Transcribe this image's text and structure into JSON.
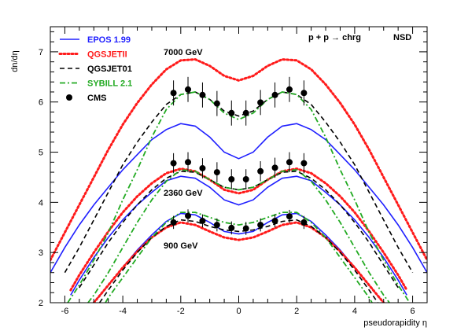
{
  "chart_data": {
    "type": "line",
    "title": "",
    "xlabel": "pseudorapidity η",
    "ylabel": "dn/dη",
    "xlim": [
      -6.5,
      6.5
    ],
    "ylim": [
      2,
      7.5
    ],
    "x_ticks": [
      -6,
      -4,
      -2,
      0,
      2,
      4,
      6
    ],
    "y_ticks": [
      2,
      3,
      4,
      5,
      6,
      7
    ],
    "grid": false,
    "legend_position": "top-left",
    "annotations": {
      "reaction": "p + p → chrg",
      "nsd": "NSD",
      "e7000": "7000 GeV",
      "e2360": "2360 GeV",
      "e900": "900 GeV"
    },
    "series": [
      {
        "name": "EPOS 1.99",
        "color": "#2020ff",
        "dash": "solid",
        "curves": [
          {
            "energy": "7000 GeV",
            "x": [
              -6.5,
              -6,
              -5.5,
              -5,
              -4.5,
              -4,
              -3.5,
              -3,
              -2.5,
              -2,
              -1.5,
              -1,
              -0.5,
              0,
              0.5,
              1,
              1.5,
              2,
              2.5,
              3,
              3.5,
              4,
              4.5,
              5,
              5.5,
              6,
              6.5
            ],
            "y": [
              2.6,
              3.1,
              3.55,
              3.95,
              4.3,
              4.65,
              4.95,
              5.25,
              5.45,
              5.57,
              5.52,
              5.3,
              5.0,
              4.87,
              5.0,
              5.3,
              5.52,
              5.57,
              5.45,
              5.25,
              4.95,
              4.65,
              4.3,
              3.95,
              3.55,
              3.1,
              2.6
            ]
          },
          {
            "energy": "2360 GeV",
            "x": [
              -5.8,
              -5.5,
              -5,
              -4.5,
              -4,
              -3.5,
              -3,
              -2.5,
              -2,
              -1.5,
              -1,
              -0.5,
              0,
              0.5,
              1,
              1.5,
              2,
              2.5,
              3,
              3.5,
              4,
              4.5,
              5,
              5.5,
              5.8
            ],
            "y": [
              2.15,
              2.45,
              2.9,
              3.3,
              3.65,
              3.95,
              4.2,
              4.43,
              4.52,
              4.48,
              4.3,
              4.05,
              3.95,
              4.05,
              4.3,
              4.48,
              4.52,
              4.43,
              4.2,
              3.95,
              3.65,
              3.3,
              2.9,
              2.45,
              2.15
            ]
          },
          {
            "energy": "900 GeV",
            "x": [
              -5,
              -4.5,
              -4,
              -3.5,
              -3,
              -2.5,
              -2,
              -1.5,
              -1,
              -0.5,
              0,
              0.5,
              1,
              1.5,
              2,
              2.5,
              3,
              3.5,
              4,
              4.5,
              5
            ],
            "y": [
              2.0,
              2.35,
              2.7,
              3.05,
              3.35,
              3.62,
              3.78,
              3.75,
              3.6,
              3.42,
              3.37,
              3.42,
              3.6,
              3.75,
              3.78,
              3.62,
              3.35,
              3.05,
              2.7,
              2.35,
              2.0
            ]
          }
        ]
      },
      {
        "name": "QGSJETII",
        "color": "#ff1a1a",
        "dash": "dotted",
        "curves": [
          {
            "energy": "7000 GeV",
            "x": [
              -6.5,
              -6,
              -5.5,
              -5,
              -4.5,
              -4,
              -3.5,
              -3,
              -2.5,
              -2,
              -1.5,
              -1,
              -0.5,
              0,
              0.5,
              1,
              1.5,
              2,
              2.5,
              3,
              3.5,
              4,
              4.5,
              5,
              5.5,
              6,
              6.5
            ],
            "y": [
              2.85,
              3.4,
              3.95,
              4.5,
              5.05,
              5.55,
              5.98,
              6.35,
              6.65,
              6.83,
              6.85,
              6.72,
              6.52,
              6.43,
              6.52,
              6.72,
              6.85,
              6.83,
              6.65,
              6.35,
              5.98,
              5.55,
              5.05,
              4.5,
              3.95,
              3.4,
              2.85
            ]
          },
          {
            "energy": "2360 GeV",
            "x": [
              -5.8,
              -5.5,
              -5,
              -4.5,
              -4,
              -3.5,
              -3,
              -2.5,
              -2,
              -1.5,
              -1,
              -0.5,
              0,
              0.5,
              1,
              1.5,
              2,
              2.5,
              3,
              3.5,
              4,
              4.5,
              5,
              5.5,
              5.8
            ],
            "y": [
              2.25,
              2.55,
              3.0,
              3.42,
              3.8,
              4.12,
              4.38,
              4.58,
              4.67,
              4.62,
              4.45,
              4.25,
              4.18,
              4.25,
              4.45,
              4.62,
              4.67,
              4.58,
              4.38,
              4.12,
              3.8,
              3.42,
              3.0,
              2.55,
              2.25
            ]
          },
          {
            "energy": "900 GeV",
            "x": [
              -5,
              -4.5,
              -4,
              -3.5,
              -3,
              -2.5,
              -2,
              -1.5,
              -1,
              -0.5,
              0,
              0.5,
              1,
              1.5,
              2,
              2.5,
              3,
              3.5,
              4,
              4.5,
              5
            ],
            "y": [
              2.0,
              2.35,
              2.7,
              3.02,
              3.3,
              3.5,
              3.6,
              3.55,
              3.42,
              3.3,
              3.25,
              3.3,
              3.42,
              3.55,
              3.6,
              3.5,
              3.3,
              3.02,
              2.7,
              2.35,
              2.0
            ]
          }
        ]
      },
      {
        "name": "QGSJET01",
        "color": "#000000",
        "dash": "dashed",
        "curves": [
          {
            "energy": "7000 GeV",
            "x": [
              -6,
              -5.5,
              -5,
              -4.5,
              -4,
              -3.5,
              -3,
              -2.5,
              -2,
              -1.5,
              -1,
              -0.5,
              0,
              0.5,
              1,
              1.5,
              2,
              2.5,
              3,
              3.5,
              4,
              4.5,
              5,
              5.5,
              6
            ],
            "y": [
              2.6,
              3.1,
              3.65,
              4.2,
              4.75,
              5.2,
              5.6,
              5.95,
              6.15,
              6.2,
              6.05,
              5.82,
              5.72,
              5.82,
              6.05,
              6.2,
              6.15,
              5.95,
              5.6,
              5.2,
              4.75,
              4.2,
              3.65,
              3.1,
              2.6
            ]
          },
          {
            "energy": "2360 GeV",
            "x": [
              -5.5,
              -5,
              -4.5,
              -4,
              -3.5,
              -3,
              -2.5,
              -2,
              -1.5,
              -1,
              -0.5,
              0,
              0.5,
              1,
              1.5,
              2,
              2.5,
              3,
              3.5,
              4,
              4.5,
              5,
              5.5
            ],
            "y": [
              2.3,
              2.75,
              3.2,
              3.6,
              3.95,
              4.25,
              4.48,
              4.62,
              4.6,
              4.45,
              4.3,
              4.25,
              4.3,
              4.45,
              4.6,
              4.62,
              4.48,
              4.25,
              3.95,
              3.6,
              3.2,
              2.75,
              2.3
            ]
          },
          {
            "energy": "900 GeV",
            "x": [
              -4.8,
              -4.5,
              -4,
              -3.5,
              -3,
              -2.5,
              -2,
              -1.5,
              -1,
              -0.5,
              0,
              0.5,
              1,
              1.5,
              2,
              2.5,
              3,
              3.5,
              4,
              4.5,
              4.8
            ],
            "y": [
              2.0,
              2.25,
              2.65,
              3.0,
              3.3,
              3.52,
              3.65,
              3.62,
              3.52,
              3.45,
              3.42,
              3.45,
              3.52,
              3.62,
              3.65,
              3.52,
              3.3,
              3.0,
              2.65,
              2.25,
              2.0
            ]
          }
        ]
      },
      {
        "name": "SYBILL 2.1",
        "color": "#22aa22",
        "dash": "dashdot",
        "curves": [
          {
            "energy": "7000 GeV",
            "x": [
              -5.9,
              -5.5,
              -5,
              -4.5,
              -4,
              -3.5,
              -3,
              -2.5,
              -2,
              -1.5,
              -1,
              -0.5,
              0,
              0.5,
              1,
              1.5,
              2,
              2.5,
              3,
              3.5,
              4,
              4.5,
              5,
              5.5,
              5.9
            ],
            "y": [
              2.0,
              2.35,
              2.85,
              3.4,
              4.05,
              4.65,
              5.3,
              5.85,
              6.15,
              6.2,
              6.05,
              5.78,
              5.65,
              5.78,
              6.05,
              6.2,
              6.15,
              5.85,
              5.3,
              4.65,
              4.05,
              3.4,
              2.85,
              2.35,
              2.0
            ]
          },
          {
            "energy": "2360 GeV",
            "x": [
              -5.2,
              -5,
              -4.5,
              -4,
              -3.5,
              -3,
              -2.5,
              -2,
              -1.5,
              -1,
              -0.5,
              0,
              0.5,
              1,
              1.5,
              2,
              2.5,
              3,
              3.5,
              4,
              4.5,
              5,
              5.2
            ],
            "y": [
              2.0,
              2.15,
              2.6,
              3.1,
              3.6,
              4.05,
              4.42,
              4.65,
              4.62,
              4.45,
              4.3,
              4.25,
              4.3,
              4.45,
              4.62,
              4.65,
              4.42,
              4.05,
              3.6,
              3.1,
              2.6,
              2.15,
              2.0
            ]
          },
          {
            "energy": "900 GeV",
            "x": [
              -4.6,
              -4.5,
              -4,
              -3.5,
              -3,
              -2.5,
              -2,
              -1.5,
              -1,
              -0.5,
              0,
              0.5,
              1,
              1.5,
              2,
              2.5,
              3,
              3.5,
              4,
              4.5,
              4.6
            ],
            "y": [
              2.0,
              2.1,
              2.5,
              2.9,
              3.3,
              3.6,
              3.8,
              3.8,
              3.7,
              3.6,
              3.55,
              3.6,
              3.7,
              3.8,
              3.8,
              3.6,
              3.3,
              2.9,
              2.5,
              2.1,
              2.0
            ]
          }
        ]
      }
    ],
    "cms": {
      "name": "CMS",
      "color": "#000000",
      "points": [
        {
          "energy": "7000 GeV",
          "x": [
            -2.25,
            -1.75,
            -1.25,
            -0.75,
            -0.25,
            0.25,
            0.75,
            1.25,
            1.75,
            2.25
          ],
          "y": [
            6.18,
            6.25,
            6.14,
            5.97,
            5.78,
            5.78,
            5.99,
            6.14,
            6.25,
            6.18
          ],
          "err": [
            0.25,
            0.25,
            0.25,
            0.25,
            0.25,
            0.25,
            0.25,
            0.25,
            0.25,
            0.25
          ]
        },
        {
          "energy": "2360 GeV",
          "x": [
            -2.25,
            -1.75,
            -1.25,
            -0.75,
            -0.25,
            0.25,
            0.75,
            1.25,
            1.75,
            2.25
          ],
          "y": [
            4.78,
            4.8,
            4.68,
            4.6,
            4.46,
            4.46,
            4.62,
            4.69,
            4.8,
            4.78
          ],
          "err": [
            0.2,
            0.2,
            0.2,
            0.2,
            0.2,
            0.2,
            0.2,
            0.2,
            0.2,
            0.2
          ]
        },
        {
          "energy": "900 GeV",
          "x": [
            -2.25,
            -1.75,
            -1.25,
            -0.75,
            -0.25,
            0.25,
            0.75,
            1.25,
            1.75,
            2.25
          ],
          "y": [
            3.6,
            3.73,
            3.63,
            3.55,
            3.49,
            3.48,
            3.55,
            3.63,
            3.72,
            3.6
          ],
          "err": [
            0.13,
            0.13,
            0.13,
            0.13,
            0.13,
            0.13,
            0.13,
            0.13,
            0.13,
            0.13
          ]
        }
      ]
    }
  }
}
